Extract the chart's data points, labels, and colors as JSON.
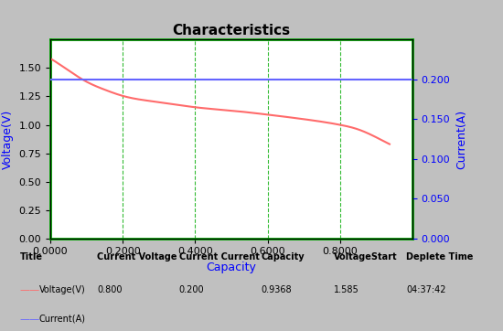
{
  "title": "Characteristics",
  "xlabel": "Capacity",
  "ylabel_left": "Voltage(V)",
  "ylabel_right": "Current(A)",
  "xlim": [
    0.0,
    1.0
  ],
  "ylim_left": [
    0.0,
    1.75
  ],
  "ylim_right": [
    0.0,
    0.2188
  ],
  "x_ticks": [
    0.0,
    0.2,
    0.4,
    0.6,
    0.8
  ],
  "x_tick_labels": [
    "0.0000",
    "0.2000",
    "0.4000",
    "0.6000",
    "0.8000"
  ],
  "y_ticks_left": [
    0.0,
    0.25,
    0.5,
    0.75,
    1.0,
    1.25,
    1.5,
    1.75
  ],
  "y_tick_labels_left": [
    "0.00",
    "0.25",
    "0.50",
    "0.75",
    "1.00",
    "1.25",
    "1.50"
  ],
  "y_ticks_right": [
    0.0,
    0.05,
    0.1,
    0.15,
    0.2
  ],
  "y_tick_labels_right": [
    "0.000",
    "0.050",
    "0.100",
    "0.150",
    "0.200"
  ],
  "vlines_x": [
    0.2,
    0.4,
    0.6,
    0.8
  ],
  "voltage_color": "#FF6B6B",
  "current_color": "#6464FF",
  "current_value": 0.2,
  "bg_color": "#C0C0C0",
  "plot_bg_color": "#FFFFFF",
  "border_color": "#00AA00",
  "grid_color": "#00AA00",
  "label_color": "#0000FF",
  "title_fontsize": 11,
  "axis_label_fontsize": 9,
  "tick_fontsize": 8,
  "legend_items": [
    {
      "label": "Voltage(V)",
      "color": "#FF6B6B"
    },
    {
      "label": "Current(A)",
      "color": "#6464FF"
    }
  ],
  "info_row": {
    "title": "Title",
    "current_voltage": "Current Voltage",
    "current_current": "Current Current",
    "capacity": "Capacity",
    "voltage_start": "VoltageStart",
    "deplete_time": "Deplete Time",
    "voltage_v": "Voltage(V)",
    "current_a": "Current(A)",
    "cv_val": "0.800",
    "cc_val": "0.200",
    "cap_val": "0.9368",
    "vs_val": "1.585",
    "dt_val": "04:37:42"
  }
}
